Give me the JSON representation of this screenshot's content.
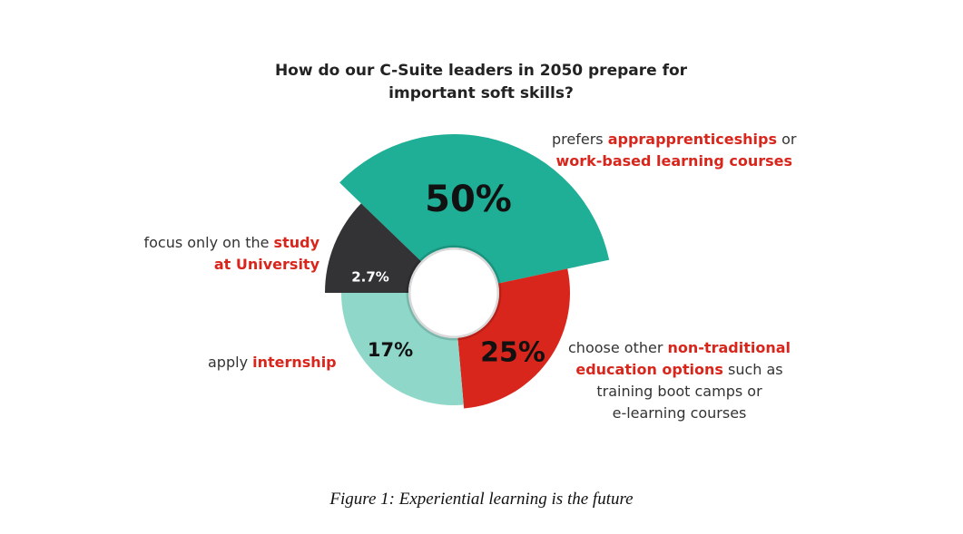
{
  "chart_data": {
    "type": "pie",
    "title": "How do our C-Suite leaders in 2050 prepare for important soft skills?",
    "slices": [
      {
        "value_label": "50%",
        "value": 50,
        "color": "#1fae96",
        "label_pre": "prefers ",
        "label_hl": "apprapprenticeships",
        "label_post": " or",
        "label_line2_hl": "work-based learning courses"
      },
      {
        "value_label": "25%",
        "value": 25,
        "color": "#d9261c",
        "label_pre": "choose other ",
        "label_hl": "non-traditional",
        "label_line2_hl": "education options",
        "label_line2_post": " such as",
        "label_line3": "training boot camps or",
        "label_line4": "e-learning courses"
      },
      {
        "value_label": "17%",
        "value": 17,
        "color": "#8ed7c9",
        "label_pre": "apply ",
        "label_hl": "internship"
      },
      {
        "value_label": "2.7%",
        "value": 2.7,
        "color": "#333235",
        "label_pre": "focus only on the ",
        "label_hl": "study",
        "label_line2_hl": "at University"
      }
    ]
  },
  "caption": "Figure 1: Experiential learning is the future"
}
